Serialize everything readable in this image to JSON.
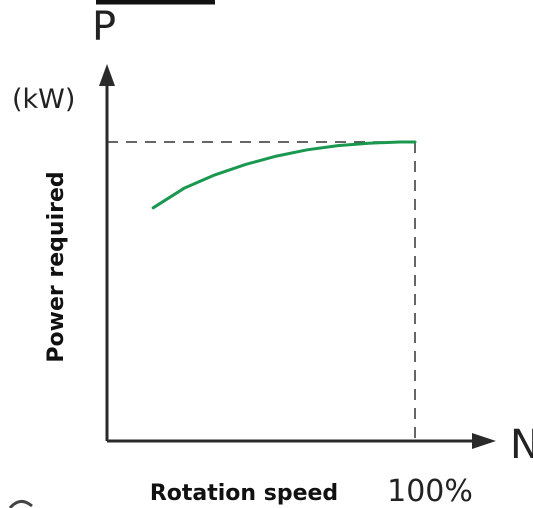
{
  "chart_data": {
    "type": "line",
    "title": "",
    "y_symbol": "P",
    "y_unit": "(kW)",
    "ylabel": "Power required",
    "x_symbol": "N",
    "xlabel": "Rotation speed",
    "x_marker_label": "100%",
    "xlim": [
      0,
      110
    ],
    "ylim": [
      0,
      100
    ],
    "x_marker": 100,
    "y_marker": 100,
    "series": [
      {
        "x": [
          15,
          25,
          35,
          45,
          55,
          65,
          75,
          85,
          95,
          100
        ],
        "y": [
          78,
          84.5,
          89,
          92.5,
          95.3,
          97.4,
          98.8,
          99.6,
          100,
          100
        ]
      }
    ],
    "grid": false,
    "legend": "none",
    "colors": {
      "curve": "#1a9850",
      "axis": "#2a2a2a",
      "guide": "#333333"
    }
  }
}
